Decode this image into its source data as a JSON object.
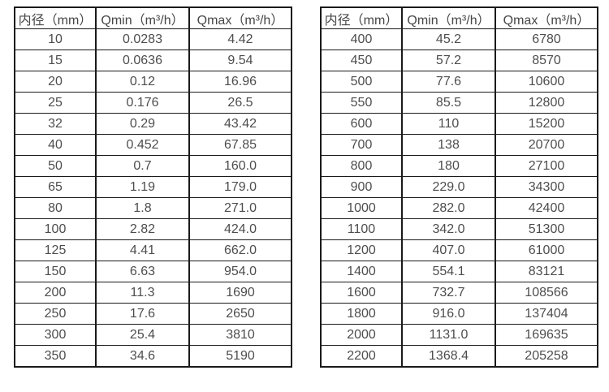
{
  "chart_data": [
    {
      "type": "table",
      "title": "",
      "columns": [
        "内径（mm）",
        "Qmin（m³/h）",
        "Qmax（m³/h）"
      ],
      "rows": [
        [
          "10",
          "0.0283",
          "4.42"
        ],
        [
          "15",
          "0.0636",
          "9.54"
        ],
        [
          "20",
          "0.12",
          "16.96"
        ],
        [
          "25",
          "0.176",
          "26.5"
        ],
        [
          "32",
          "0.29",
          "43.42"
        ],
        [
          "40",
          "0.452",
          "67.85"
        ],
        [
          "50",
          "0.7",
          "160.0"
        ],
        [
          "65",
          "1.19",
          "179.0"
        ],
        [
          "80",
          "1.8",
          "271.0"
        ],
        [
          "100",
          "2.82",
          "424.0"
        ],
        [
          "125",
          "4.41",
          "662.0"
        ],
        [
          "150",
          "6.63",
          "954.0"
        ],
        [
          "200",
          "11.3",
          "1690"
        ],
        [
          "250",
          "17.6",
          "2650"
        ],
        [
          "300",
          "25.4",
          "3810"
        ],
        [
          "350",
          "34.6",
          "5190"
        ]
      ]
    },
    {
      "type": "table",
      "title": "",
      "columns": [
        "内径（mm）",
        "Qmin（m³/h）",
        "Qmax（m³/h）"
      ],
      "rows": [
        [
          "400",
          "45.2",
          "6780"
        ],
        [
          "450",
          "57.2",
          "8570"
        ],
        [
          "500",
          "77.6",
          "10600"
        ],
        [
          "550",
          "85.5",
          "12800"
        ],
        [
          "600",
          "110",
          "15200"
        ],
        [
          "700",
          "138",
          "20700"
        ],
        [
          "800",
          "180",
          "27100"
        ],
        [
          "900",
          "229.0",
          "34300"
        ],
        [
          "1000",
          "282.0",
          "42400"
        ],
        [
          "1100",
          "342.0",
          "51300"
        ],
        [
          "1200",
          "407.0",
          "61000"
        ],
        [
          "1400",
          "554.1",
          "83121"
        ],
        [
          "1600",
          "732.7",
          "108566"
        ],
        [
          "1800",
          "916.0",
          "137404"
        ],
        [
          "2000",
          "1131.0",
          "169635"
        ],
        [
          "2200",
          "1368.4",
          "205258"
        ]
      ]
    }
  ],
  "colors": {
    "border": "#1a1a1a",
    "text": "#4d4d4d",
    "background": "#ffffff"
  }
}
